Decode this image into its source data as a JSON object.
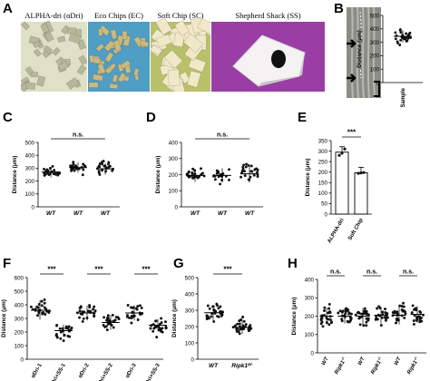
{
  "panel_letters": {
    "A": "A",
    "B": "B",
    "C": "C",
    "D": "D",
    "E": "E",
    "F": "F",
    "G": "G",
    "H": "H"
  },
  "panel_a": {
    "photos": [
      {
        "label": "ALPHA-dri (αDri)",
        "bg": "#dfe0c8",
        "piece": "#b7b79a"
      },
      {
        "label": "Eco Chips (EC)",
        "bg": "#4f9ec6",
        "piece": "#cbb97f"
      },
      {
        "label": "Soft Chip (SC)",
        "bg": "#b9c06a",
        "piece": "#f1e8c8"
      },
      {
        "label": "Shepherd Shack (SS)",
        "bg": "#9a3ea6",
        "piece": "#ffffff"
      }
    ]
  },
  "colors": {
    "point": "#111111",
    "bar_fill": "#ffffff",
    "axis": "#000000"
  },
  "chart_data": [
    {
      "panel": "B",
      "type": "scatter",
      "ylabel": "Distance (μm)",
      "ylim": [
        0,
        500
      ],
      "yticks": [
        0,
        100,
        200,
        300,
        400,
        500
      ],
      "categories": [
        "Sample"
      ],
      "series": [
        {
          "category": "Sample",
          "mean": 345,
          "sd": 45,
          "n": 30
        }
      ],
      "significance": []
    },
    {
      "panel": "C",
      "type": "scatter",
      "ylabel": "Distance (μm)",
      "ylim": [
        0,
        500
      ],
      "yticks": [
        0,
        100,
        200,
        300,
        400,
        500
      ],
      "categories": [
        "WT",
        "WT",
        "WT"
      ],
      "categories_italic": true,
      "series": [
        {
          "category": "WT",
          "mean": 270,
          "sd": 40,
          "n": 24
        },
        {
          "category": "WT",
          "mean": 305,
          "sd": 40,
          "n": 24
        },
        {
          "category": "WT",
          "mean": 295,
          "sd": 45,
          "n": 24
        }
      ],
      "significance": [
        {
          "from": 0,
          "to": 2,
          "label": "n.s."
        }
      ]
    },
    {
      "panel": "D",
      "type": "scatter",
      "ylabel": "Distance (μm)",
      "ylim": [
        0,
        400
      ],
      "yticks": [
        0,
        100,
        200,
        300,
        400
      ],
      "categories": [
        "WT",
        "WT",
        "WT"
      ],
      "categories_italic": true,
      "series": [
        {
          "category": "WT",
          "mean": 195,
          "sd": 40,
          "n": 24
        },
        {
          "category": "WT",
          "mean": 195,
          "sd": 45,
          "n": 22
        },
        {
          "category": "WT",
          "mean": 205,
          "sd": 55,
          "n": 24
        }
      ],
      "significance": [
        {
          "from": 0,
          "to": 2,
          "label": "n.s."
        }
      ]
    },
    {
      "panel": "E",
      "type": "bar",
      "ylabel": "Distance (μm)",
      "ylim": [
        0,
        350
      ],
      "yticks": [
        0,
        50,
        100,
        150,
        200,
        250,
        300,
        350
      ],
      "categories": [
        "ALPHA-dri",
        "Soft Chip"
      ],
      "values": [
        295,
        197
      ],
      "points": [
        [
          280,
          290,
          310
        ],
        [
          194,
          196,
          198
        ]
      ],
      "significance": [
        {
          "from": 0,
          "to": 1,
          "label": "***"
        }
      ]
    },
    {
      "panel": "F",
      "type": "scatter",
      "ylabel": "Distance (μm)",
      "ylim": [
        0,
        600
      ],
      "yticks": [
        0,
        100,
        200,
        300,
        400,
        500,
        600
      ],
      "categories": [
        "αDri-1",
        "αDri+SS-1",
        "αDri-2",
        "αDri+SS-2",
        "αDri-3",
        "αDri+SS-3"
      ],
      "series": [
        {
          "category": "αDri-1",
          "mean": 360,
          "sd": 70,
          "n": 26
        },
        {
          "category": "αDri+SS-1",
          "mean": 210,
          "sd": 45,
          "n": 26
        },
        {
          "category": "αDri-2",
          "mean": 340,
          "sd": 55,
          "n": 26
        },
        {
          "category": "αDri+SS-2",
          "mean": 270,
          "sd": 55,
          "n": 26
        },
        {
          "category": "αDri-3",
          "mean": 340,
          "sd": 55,
          "n": 26
        },
        {
          "category": "αDri+SS-3",
          "mean": 250,
          "sd": 45,
          "n": 26
        }
      ],
      "significance": [
        {
          "from": 0,
          "to": 1,
          "label": "***"
        },
        {
          "from": 2,
          "to": 3,
          "label": "***"
        },
        {
          "from": 4,
          "to": 5,
          "label": "***"
        }
      ]
    },
    {
      "panel": "G",
      "type": "scatter",
      "ylabel": "Distance (μm)",
      "ylim": [
        0,
        500
      ],
      "yticks": [
        0,
        100,
        200,
        300,
        400,
        500
      ],
      "categories": [
        "WT",
        "Ripk1"
      ],
      "categories_italic": true,
      "category_superscripts": [
        "",
        "Δ/-"
      ],
      "series": [
        {
          "category": "WT",
          "mean": 285,
          "sd": 45,
          "n": 30
        },
        {
          "category": "Ripk1Δ/-",
          "mean": 195,
          "sd": 40,
          "n": 30
        }
      ],
      "significance": [
        {
          "from": 0,
          "to": 1,
          "label": "***"
        }
      ]
    },
    {
      "panel": "H",
      "type": "scatter",
      "ylabel": "Distance (μm)",
      "ylim": [
        0,
        400
      ],
      "yticks": [
        0,
        100,
        200,
        300,
        400
      ],
      "categories": [
        "WT",
        "Ripk1",
        "WT",
        "Ripk1",
        "WT",
        "Ripk1"
      ],
      "categories_italic": true,
      "category_superscripts": [
        "",
        "-/-",
        "",
        "-/-",
        "",
        "-/-"
      ],
      "series": [
        {
          "category": "WT",
          "mean": 200,
          "sd": 45,
          "n": 24
        },
        {
          "category": "Ripk1-/-",
          "mean": 200,
          "sd": 40,
          "n": 24
        },
        {
          "category": "WT",
          "mean": 200,
          "sd": 45,
          "n": 24
        },
        {
          "category": "Ripk1-/-",
          "mean": 205,
          "sd": 45,
          "n": 24
        },
        {
          "category": "WT",
          "mean": 205,
          "sd": 50,
          "n": 24
        },
        {
          "category": "Ripk1-/-",
          "mean": 210,
          "sd": 45,
          "n": 24
        }
      ],
      "significance": [
        {
          "from": 0,
          "to": 1,
          "label": "n.s."
        },
        {
          "from": 2,
          "to": 3,
          "label": "n.s."
        },
        {
          "from": 4,
          "to": 5,
          "label": "n.s."
        }
      ]
    }
  ]
}
